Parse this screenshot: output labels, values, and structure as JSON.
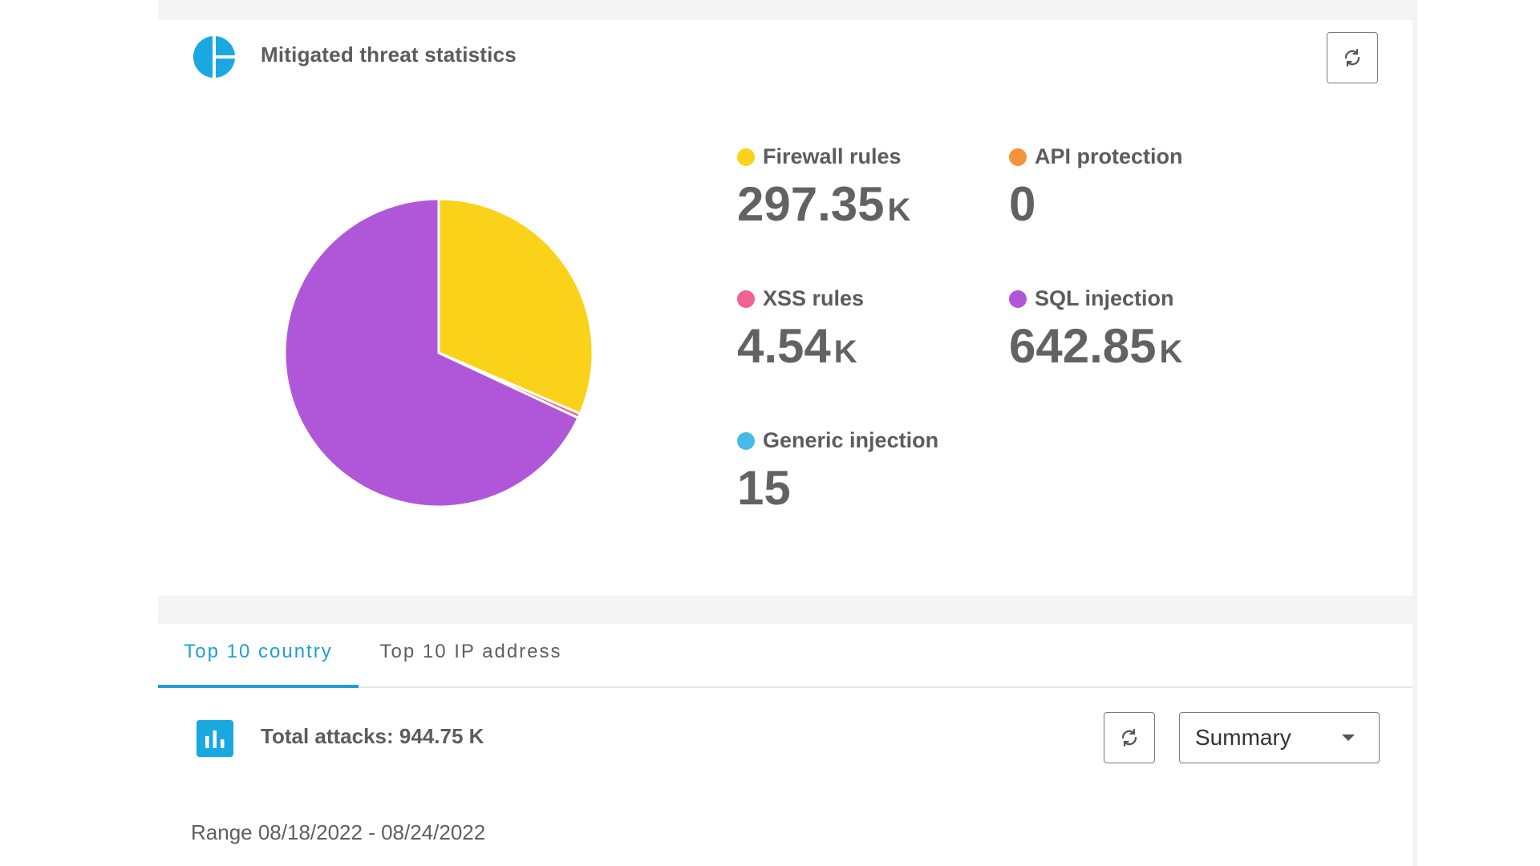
{
  "stats_card": {
    "title": "Mitigated threat statistics",
    "icon": "pie-chart-icon",
    "refresh_icon": "refresh-icon"
  },
  "colors": {
    "firewall": "#f9d219",
    "api": "#f5943a",
    "xss": "#f06292",
    "sql": "#b057d9",
    "generic": "#48b9e8",
    "accent": "#1f9fd6"
  },
  "stats": {
    "firewall": {
      "label": "Firewall rules",
      "value": "297.35",
      "unit": "K"
    },
    "api": {
      "label": "API protection",
      "value": "0",
      "unit": ""
    },
    "xss": {
      "label": "XSS rules",
      "value": "4.54",
      "unit": "K"
    },
    "sql": {
      "label": "SQL injection",
      "value": "642.85",
      "unit": "K"
    },
    "generic": {
      "label": "Generic injection",
      "value": "15",
      "unit": ""
    }
  },
  "chart_data": {
    "type": "pie",
    "categories": [
      "Firewall rules",
      "API protection",
      "XSS rules",
      "SQL injection",
      "Generic injection"
    ],
    "values": [
      297350,
      0,
      4540,
      642850,
      15
    ],
    "colors": [
      "#f9d219",
      "#f5943a",
      "#f06292",
      "#b057d9",
      "#48b9e8"
    ]
  },
  "top10": {
    "tabs": [
      {
        "label": "Top 10 country",
        "active": true
      },
      {
        "label": "Top 10 IP address",
        "active": false
      }
    ],
    "total_label": "Total attacks: 944.75 K",
    "icon": "bar-chart-icon",
    "select_value": "Summary",
    "range": "Range 08/18/2022 - 08/24/2022"
  }
}
